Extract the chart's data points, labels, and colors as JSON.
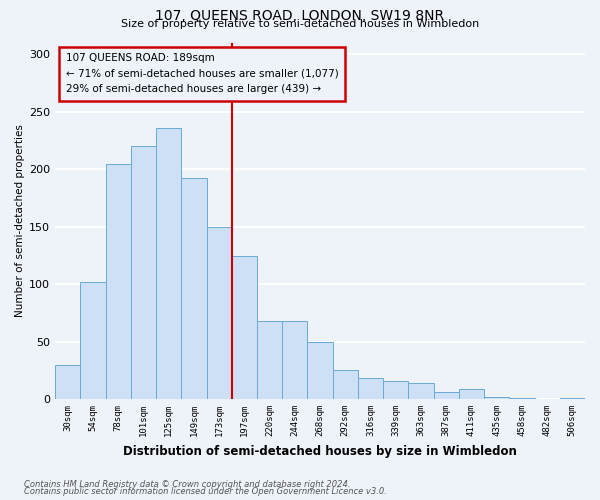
{
  "title": "107, QUEENS ROAD, LONDON, SW19 8NR",
  "subtitle": "Size of property relative to semi-detached houses in Wimbledon",
  "xlabel": "Distribution of semi-detached houses by size in Wimbledon",
  "ylabel": "Number of semi-detached properties",
  "bar_labels": [
    "30sqm",
    "54sqm",
    "78sqm",
    "101sqm",
    "125sqm",
    "149sqm",
    "173sqm",
    "197sqm",
    "220sqm",
    "244sqm",
    "268sqm",
    "292sqm",
    "316sqm",
    "339sqm",
    "363sqm",
    "387sqm",
    "411sqm",
    "435sqm",
    "458sqm",
    "482sqm",
    "506sqm"
  ],
  "bar_values": [
    30,
    102,
    204,
    220,
    236,
    192,
    150,
    124,
    68,
    68,
    50,
    25,
    18,
    16,
    14,
    6,
    9,
    2,
    1,
    0,
    1
  ],
  "bar_color": "#cde0f5",
  "bar_edge_color": "#6aaad4",
  "vline_color": "#cc0000",
  "annotation_title": "107 QUEENS ROAD: 189sqm",
  "annotation_line1": "← 71% of semi-detached houses are smaller (1,077)",
  "annotation_line2": "29% of semi-detached houses are larger (439) →",
  "annotation_box_edge_color": "#cc0000",
  "ylim": [
    0,
    310
  ],
  "yticks": [
    0,
    50,
    100,
    150,
    200,
    250,
    300
  ],
  "footer1": "Contains HM Land Registry data © Crown copyright and database right 2024.",
  "footer2": "Contains public sector information licensed under the Open Government Licence v3.0.",
  "bg_color": "#eef2f9",
  "grid_color": "#ffffff"
}
